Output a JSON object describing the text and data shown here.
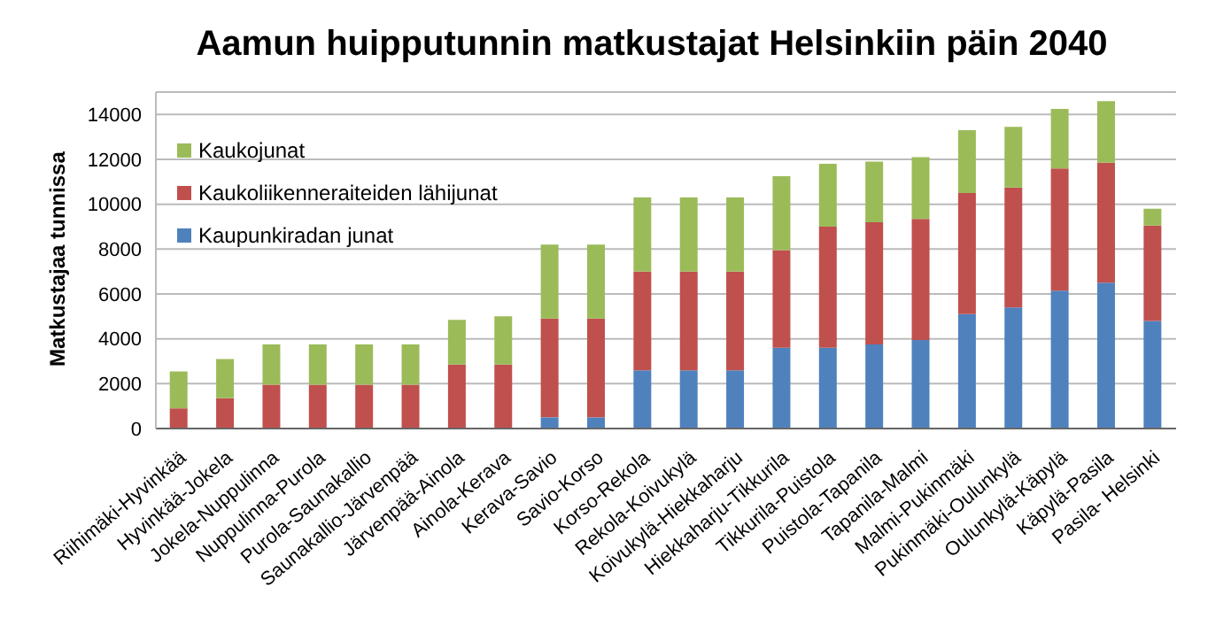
{
  "chart_data": {
    "type": "bar",
    "title": "Aamun huipputunnin matkustajat Helsinkiin päin 2040",
    "ylabel": "Matkustajaa tunnissa",
    "stacked": true,
    "grid": "y",
    "legend": "top left",
    "categories": [
      "Riihimäki-Hyvinkää",
      "Hyvinkää-Jokela",
      "Jokela-Nuppulinna",
      "Nuppulinna-Purola",
      "Purola-Saunakallio",
      "Saunakallio-Järvenpää",
      "Järvenpää-Ainola",
      "Ainola-Kerava",
      "Kerava-Savio",
      "Savio-Korso",
      "Korso-Rekola",
      "Rekola-Koivukylä",
      "Koivukylä-Hiekkaharju",
      "Hiekkaharju-Tikkurila",
      "Tikkurila-Puistola",
      "Puistola-Tapanila",
      "Tapanila-Malmi",
      "Malmi-Pukinmäki",
      "Pukinmäki-Oulunkylä",
      "Oulunkylä-Käpylä",
      "Käpylä-Pasila",
      "Pasila- Helsinki"
    ],
    "series": [
      {
        "name": "Kaupunkiradan junat",
        "color": "#4f81bd",
        "values": [
          0,
          0,
          0,
          0,
          0,
          0,
          0,
          0,
          500,
          500,
          2600,
          2600,
          2600,
          3600,
          3600,
          3750,
          3950,
          5100,
          5400,
          6150,
          6500,
          4800
        ]
      },
      {
        "name": "Kaukoliikenneraiteiden lähijunat",
        "color": "#c0504d",
        "values": [
          900,
          1350,
          1950,
          1950,
          1950,
          1950,
          2850,
          2850,
          4400,
          4400,
          4400,
          4400,
          4400,
          4350,
          5400,
          5450,
          5400,
          5400,
          5350,
          5450,
          5350,
          4250
        ]
      },
      {
        "name": "Kaukojunat",
        "color": "#9bbb59",
        "values": [
          1650,
          1750,
          1800,
          1800,
          1800,
          1800,
          2000,
          2150,
          3300,
          3300,
          3300,
          3300,
          3300,
          3300,
          2800,
          2700,
          2750,
          2800,
          2700,
          2650,
          2750,
          750
        ]
      }
    ],
    "ylim": [
      0,
      15000
    ],
    "yticks": [
      0,
      2000,
      4000,
      6000,
      8000,
      10000,
      12000,
      14000
    ]
  }
}
